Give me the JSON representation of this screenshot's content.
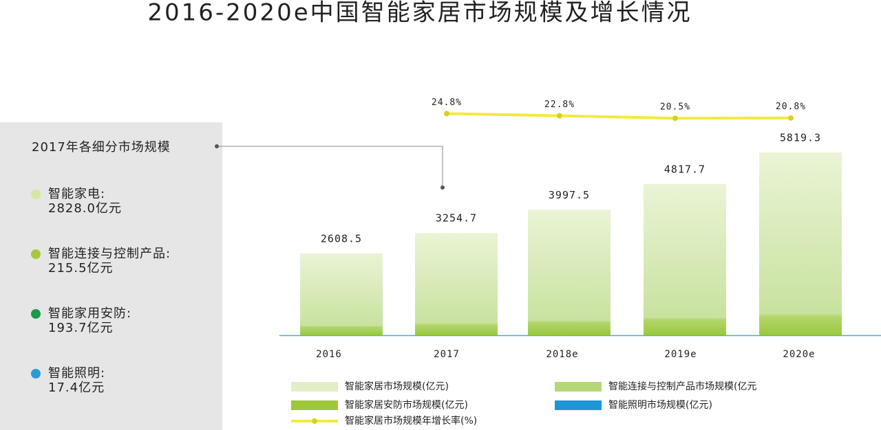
{
  "chart_data": {
    "type": "bar",
    "title": "2016-2020e中国智能家居市场规模及增长情况",
    "categories": [
      "2016",
      "2017",
      "2018e",
      "2019e",
      "2020e"
    ],
    "series": [
      {
        "name": "智能家居市场规模(亿元)",
        "color": "#c9e29f",
        "values": [
          2608.5,
          3254.7,
          3997.5,
          4817.7,
          5819.3
        ]
      },
      {
        "name": "智能家居市场规模年增长率(%)",
        "color": "#f2ea3c",
        "type": "line",
        "values": [
          null,
          24.8,
          22.8,
          20.5,
          20.8
        ],
        "value_labels": [
          null,
          "24.8%",
          "22.8%",
          "20.5%",
          "20.8%"
        ]
      }
    ],
    "legend_items": [
      {
        "name": "智能连接与控制产品市场规模(亿元",
        "color": "#b6d67a"
      },
      {
        "name": "智能家居安防市场规模(亿元)",
        "color": "#9cc83a"
      },
      {
        "name": "智能照明市场规模(亿元)",
        "color": "#1e95d4"
      }
    ],
    "panel": {
      "title": "2017年各细分市场规模",
      "items": [
        {
          "label": "智能家电:",
          "value": "2828.0亿元",
          "color": "#d4e8a0"
        },
        {
          "label": "智能连接与控制产品:",
          "value": "215.5亿元",
          "color": "#a8c83a"
        },
        {
          "label": "智能家用安防:",
          "value": "193.7亿元",
          "color": "#1a9a4a"
        },
        {
          "label": "智能照明:",
          "value": "17.4亿元",
          "color": "#2a9ad8"
        }
      ]
    }
  }
}
